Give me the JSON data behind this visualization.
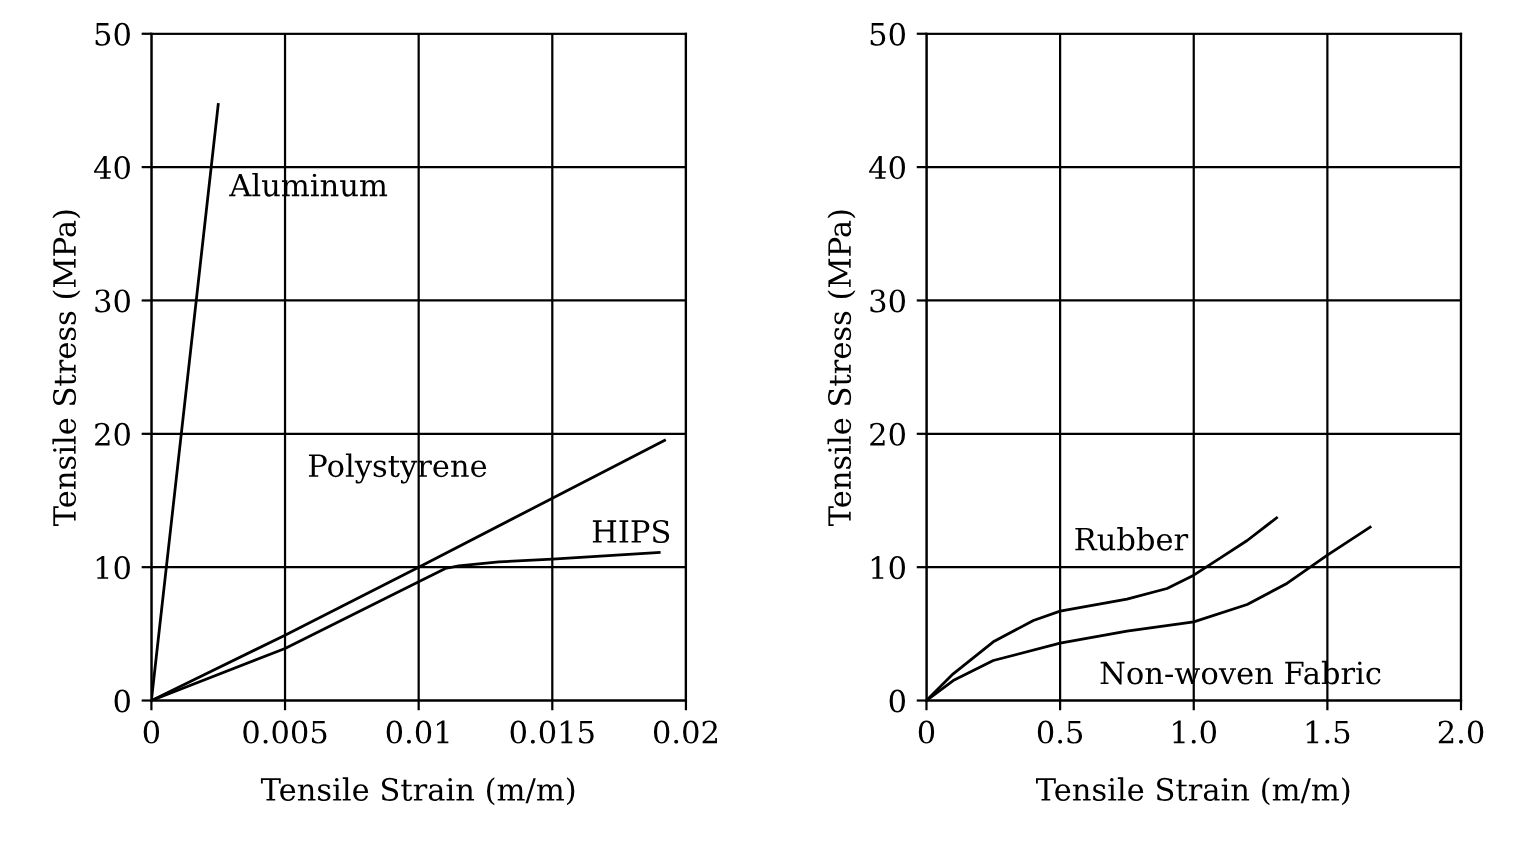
{
  "chart_data": [
    {
      "type": "line",
      "xlabel": "Tensile Strain (m/m)",
      "ylabel": "Tensile Stress (MPa)",
      "xlim": [
        0,
        0.02
      ],
      "ylim": [
        0,
        50
      ],
      "xticks": [
        0,
        0.005,
        0.01,
        0.015,
        0.02
      ],
      "yticks": [
        0,
        10,
        20,
        30,
        40,
        50
      ],
      "grid": true,
      "color": "#000000",
      "series": [
        {
          "name": "Aluminum",
          "x": [
            0,
            0.0025
          ],
          "values": [
            0,
            44.7
          ]
        },
        {
          "name": "Polystyrene",
          "x": [
            0,
            0.005,
            0.01,
            0.0192
          ],
          "values": [
            0,
            4.9,
            10.0,
            19.5
          ]
        },
        {
          "name": "HIPS",
          "x": [
            0,
            0.005,
            0.01,
            0.011,
            0.0115,
            0.013,
            0.015,
            0.019
          ],
          "values": [
            0,
            3.9,
            8.9,
            9.9,
            10.1,
            10.4,
            10.6,
            11.1
          ]
        }
      ]
    },
    {
      "type": "line",
      "xlabel": "Tensile Strain (m/m)",
      "ylabel": "Tensile Stress (MPa)",
      "xlim": [
        0,
        2.0
      ],
      "ylim": [
        0,
        50
      ],
      "xticks": [
        0,
        0.5,
        {
          "value": 1,
          "label": "1.0"
        },
        1.5,
        {
          "value": 2,
          "label": "2.0"
        }
      ],
      "yticks": [
        0,
        10,
        20,
        30,
        40,
        50
      ],
      "grid": true,
      "color": "#000000",
      "series": [
        {
          "name": "Rubber",
          "x": [
            0,
            0.1,
            0.25,
            0.4,
            0.5,
            0.75,
            0.9,
            1.0,
            1.1,
            1.2,
            1.31
          ],
          "values": [
            0,
            2.0,
            4.4,
            6.0,
            6.7,
            7.6,
            8.4,
            9.4,
            10.7,
            12.0,
            13.7
          ]
        },
        {
          "name": "Non-woven Fabric",
          "x": [
            0,
            0.1,
            0.25,
            0.5,
            0.75,
            1.0,
            1.2,
            1.35,
            1.5,
            1.66
          ],
          "values": [
            0,
            1.5,
            3.0,
            4.3,
            5.2,
            5.9,
            7.2,
            8.8,
            10.9,
            13.0
          ]
        }
      ]
    }
  ]
}
